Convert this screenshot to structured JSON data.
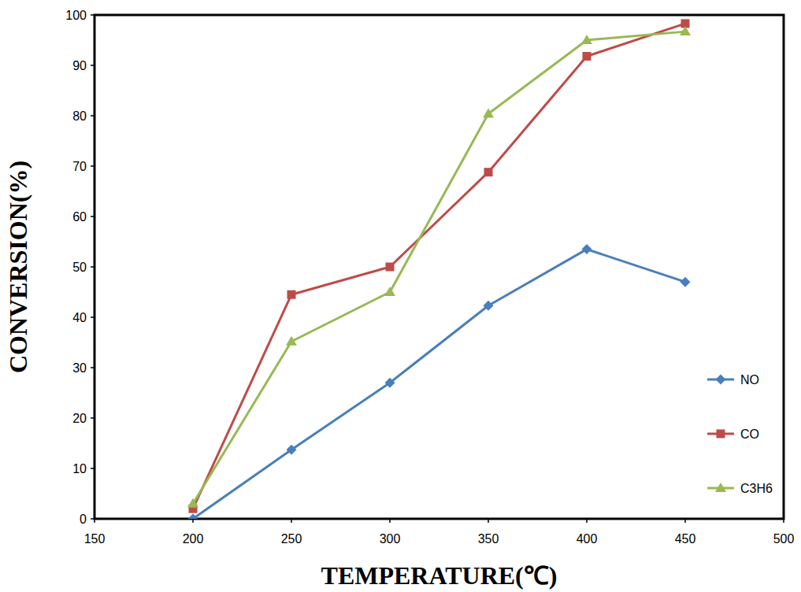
{
  "chart_data": {
    "type": "line",
    "x_label": "TEMPERATURE(℃)",
    "y_label": "CONVERSION(%)",
    "x": [
      200,
      250,
      300,
      350,
      400,
      450
    ],
    "series": [
      {
        "name": "NO",
        "color": "#4a7ebb",
        "marker": "diamond",
        "values": [
          0,
          13.7,
          27,
          42.3,
          53.5,
          47
        ]
      },
      {
        "name": "CO",
        "color": "#be4b48",
        "marker": "square",
        "values": [
          2,
          44.5,
          50,
          68.8,
          91.8,
          98.3
        ]
      },
      {
        "name": "C3H6",
        "color": "#98b954",
        "marker": "triangle",
        "values": [
          3,
          35.2,
          45,
          80.4,
          95,
          96.7
        ]
      }
    ],
    "xlim": [
      150,
      500
    ],
    "xticks": [
      150,
      200,
      250,
      300,
      350,
      400,
      450,
      500
    ],
    "ylim": [
      0,
      100
    ],
    "yticks": [
      0,
      10,
      20,
      30,
      40,
      50,
      60,
      70,
      80,
      90,
      100
    ],
    "grid": false,
    "legend": "right"
  }
}
